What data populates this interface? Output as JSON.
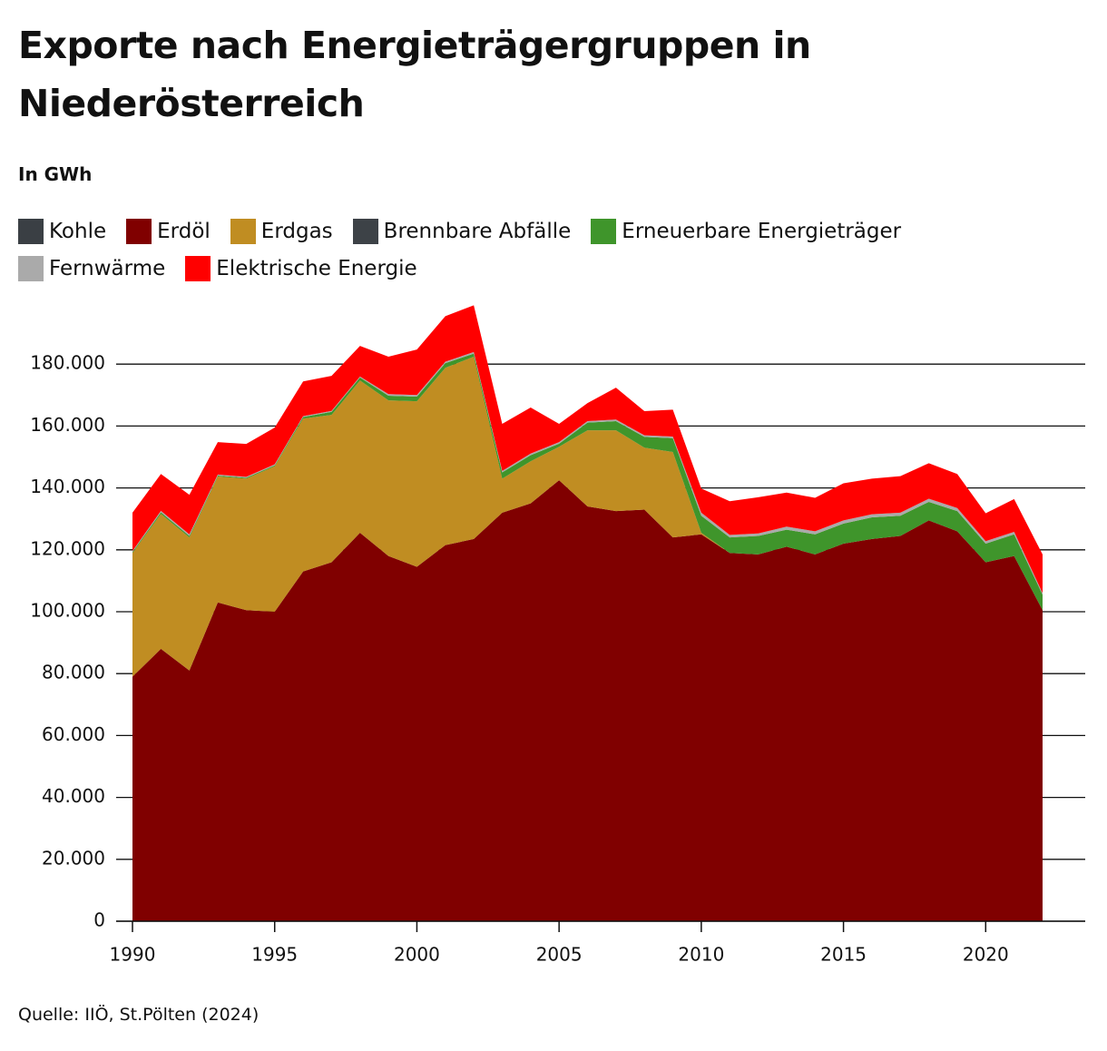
{
  "chart_data": {
    "type": "stacked-area",
    "title": "Exporte nach Energieträgergruppen in Niederösterreich",
    "subtitle": "In GWh",
    "source": "Quelle: IIÖ, St.Pölten (2024)",
    "x": [
      1990,
      1991,
      1992,
      1993,
      1994,
      1995,
      1996,
      1997,
      1998,
      1999,
      2000,
      2001,
      2002,
      2003,
      2004,
      2005,
      2006,
      2007,
      2008,
      2009,
      2010,
      2011,
      2012,
      2013,
      2014,
      2015,
      2016,
      2017,
      2018,
      2019,
      2020,
      2021,
      2022
    ],
    "xlim": [
      1990,
      2023.5
    ],
    "xticks": [
      1990,
      1995,
      2000,
      2005,
      2010,
      2015,
      2020
    ],
    "ylim": [
      0,
      200000
    ],
    "yticks": [
      0,
      {
        "value": 20000,
        "label": "20.000"
      },
      {
        "value": 40000,
        "label": "40.000"
      },
      {
        "value": 60000,
        "label": "60.000"
      },
      {
        "value": 80000,
        "label": "80.000"
      },
      {
        "value": 100000,
        "label": "100.000"
      },
      {
        "value": 120000,
        "label": "120.000"
      },
      {
        "value": 140000,
        "label": "140.000"
      },
      {
        "value": 160000,
        "label": "160.000"
      },
      {
        "value": 180000,
        "label": "180.000"
      }
    ],
    "grid": true,
    "series": [
      {
        "name": "Kohle",
        "color": "#3a3f44",
        "values": [
          0,
          0,
          0,
          0,
          0,
          0,
          0,
          0,
          0,
          0,
          0,
          0,
          0,
          0,
          0,
          0,
          0,
          0,
          0,
          0,
          0,
          0,
          0,
          0,
          0,
          0,
          0,
          0,
          0,
          0,
          0,
          0,
          0
        ]
      },
      {
        "name": "Erdöl",
        "color": "#800000",
        "values": [
          79000,
          88000,
          81000,
          103000,
          100500,
          100000,
          113000,
          116000,
          125500,
          118000,
          114500,
          121500,
          123500,
          132000,
          135000,
          142500,
          134000,
          132500,
          133000,
          124000,
          125000,
          119000,
          118500,
          121000,
          118500,
          122000,
          123500,
          124500,
          129500,
          126000,
          116000,
          118000,
          100500
        ]
      },
      {
        "name": "Erdgas",
        "color": "#c08d22",
        "values": [
          40000,
          43600,
          43000,
          40700,
          42500,
          47000,
          49400,
          47600,
          49200,
          50300,
          53500,
          57300,
          58900,
          11000,
          13600,
          10800,
          24600,
          26100,
          20000,
          27600,
          500,
          0,
          0,
          0,
          0,
          0,
          0,
          0,
          0,
          0,
          0,
          0,
          0
        ]
      },
      {
        "name": "Brennbare Abfälle",
        "color": "#3d4247",
        "values": [
          0,
          0,
          0,
          0,
          0,
          0,
          0,
          0,
          0,
          0,
          0,
          0,
          0,
          0,
          0,
          0,
          0,
          0,
          0,
          0,
          0,
          0,
          0,
          0,
          0,
          0,
          0,
          0,
          0,
          0,
          0,
          0,
          0
        ]
      },
      {
        "name": "Erneuerbare Energieträger",
        "color": "#3f952b",
        "values": [
          300,
          500,
          500,
          300,
          300,
          300,
          500,
          1000,
          1000,
          1500,
          1500,
          1500,
          1000,
          2000,
          2000,
          1000,
          2500,
          3000,
          3500,
          4500,
          5500,
          5000,
          6000,
          5500,
          6500,
          6500,
          7000,
          6500,
          6000,
          6500,
          6000,
          7000,
          5000
        ]
      },
      {
        "name": "Fernwärme",
        "color": "#aaaaaa",
        "values": [
          300,
          500,
          500,
          300,
          300,
          300,
          300,
          300,
          300,
          500,
          500,
          500,
          500,
          500,
          500,
          500,
          500,
          500,
          500,
          500,
          1000,
          800,
          800,
          1000,
          1000,
          1000,
          1000,
          1000,
          1000,
          1000,
          800,
          800,
          500
        ]
      },
      {
        "name": "Elektrische Energie",
        "color": "#ff0000",
        "values": [
          12400,
          11900,
          12800,
          10500,
          10600,
          11900,
          11200,
          11300,
          9900,
          12100,
          14700,
          14700,
          15100,
          15200,
          14900,
          5900,
          5800,
          10300,
          7800,
          8700,
          7800,
          10900,
          11700,
          11000,
          10800,
          12000,
          11500,
          11800,
          11500,
          11000,
          9000,
          10600,
          12500
        ]
      }
    ]
  }
}
